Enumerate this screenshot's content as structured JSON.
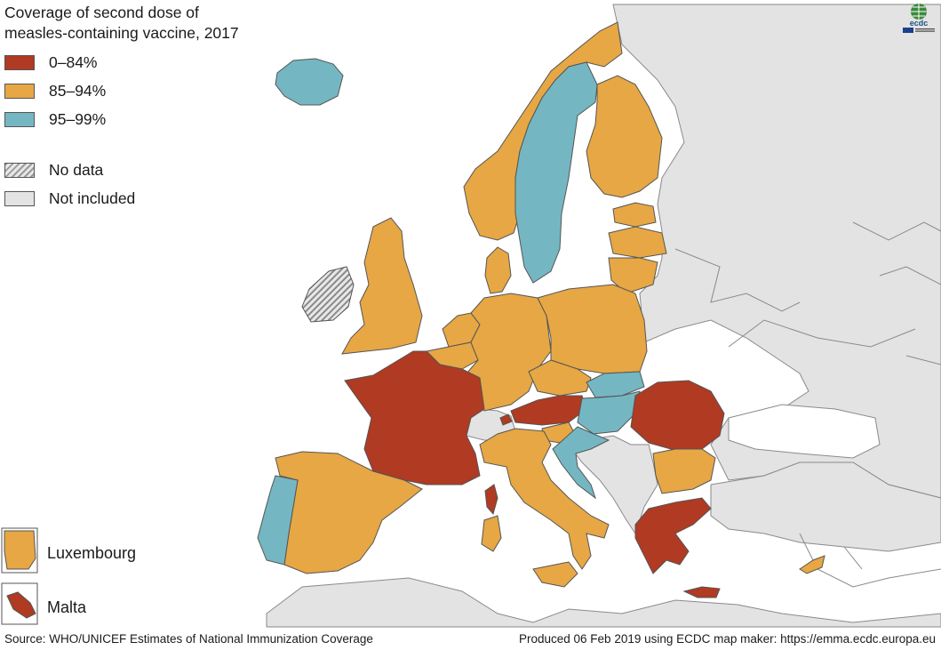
{
  "title_line1": "Coverage of second dose of",
  "title_line2": "measles-containing vaccine, 2017",
  "colors": {
    "low": "#b03a22",
    "mid": "#e6a744",
    "high": "#74b7c2",
    "no_data": "#cfcfcf",
    "not_included": "#e3e3e3",
    "sea": "#ffffff",
    "border": "#555555"
  },
  "legend": {
    "low": "0–84%",
    "mid": "85–94%",
    "high": "95–99%",
    "no_data": "No data",
    "not_included": "Not included"
  },
  "insets": {
    "luxembourg": "Luxembourg",
    "malta": "Malta"
  },
  "countries": {
    "Iceland": "high",
    "Norway": "mid",
    "Sweden": "high",
    "Finland": "mid",
    "Estonia": "mid",
    "Latvia": "mid",
    "Lithuania": "mid",
    "Denmark": "mid",
    "United Kingdom": "mid",
    "Ireland": "no_data",
    "Netherlands": "mid",
    "Belgium": "mid",
    "Luxembourg": "mid",
    "Germany": "mid",
    "Poland": "mid",
    "Czechia": "mid",
    "Slovakia": "high",
    "Austria": "low",
    "Hungary": "high",
    "Slovenia": "mid",
    "Croatia": "high",
    "France": "low",
    "Spain": "mid",
    "Portugal": "high",
    "Italy": "mid",
    "Romania": "low",
    "Bulgaria": "mid",
    "Greece": "low",
    "Cyprus": "mid",
    "Malta": "low",
    "Switzerland": "not_included",
    "Liechtenstein": "low"
  },
  "source": "Source: WHO/UNICEF Estimates of National Immunization Coverage",
  "produced": "Produced 06 Feb 2019 using ECDC map maker: https://emma.ecdc.europa.eu",
  "logo_text": "ecdc"
}
